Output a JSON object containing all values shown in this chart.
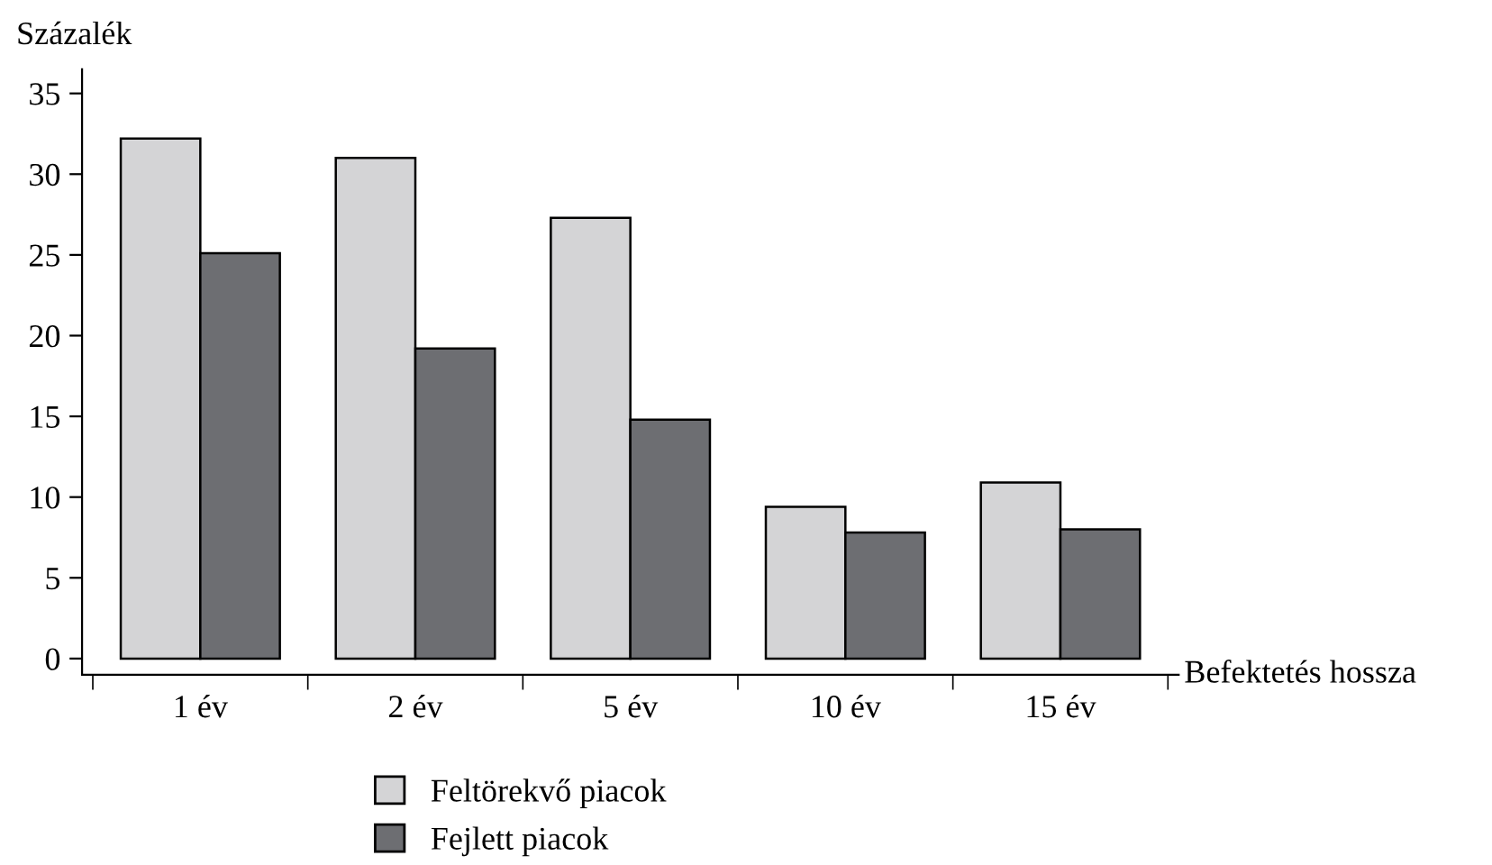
{
  "chart_data": {
    "type": "bar",
    "xlabel": "Befektetés hossza",
    "ylabel": "Százalék",
    "categories": [
      "1 év",
      "2 év",
      "5 év",
      "10 év",
      "15 év"
    ],
    "series": [
      {
        "name": "Feltörekvő piacok",
        "color": "#d4d4d6",
        "values": [
          32.2,
          31.0,
          27.3,
          9.4,
          10.9
        ]
      },
      {
        "name": "Fejlett piacok",
        "color": "#6d6e72",
        "values": [
          25.1,
          19.2,
          14.8,
          7.8,
          8.0
        ]
      }
    ],
    "ylim": [
      -1,
      36.5
    ],
    "yticks": [
      0,
      5,
      10,
      15,
      20,
      25,
      30,
      35
    ],
    "grid": false,
    "legend": "bottom"
  }
}
